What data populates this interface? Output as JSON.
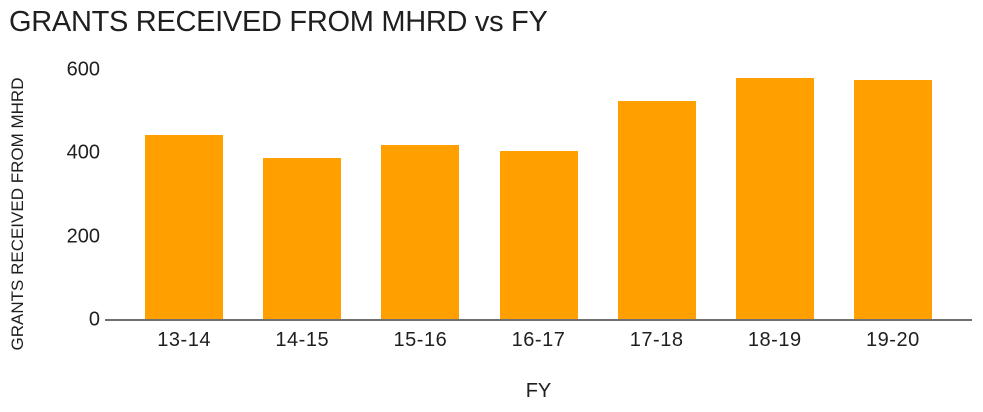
{
  "title": "GRANTS RECEIVED FROM MHRD vs FY",
  "y_axis": {
    "title": "GRANTS RECEIVED FROM MHRD",
    "tick_labels": [
      "600",
      "400",
      "200",
      "0"
    ]
  },
  "x_axis": {
    "title": "FY",
    "tick_labels": [
      "13-14",
      "14-15",
      "15-16",
      "16-17",
      "17-18",
      "18-19",
      "19-20"
    ]
  },
  "chart_data": {
    "type": "bar",
    "title": "GRANTS RECEIVED FROM MHRD vs FY",
    "categories": [
      "13-14",
      "14-15",
      "15-16",
      "16-17",
      "17-18",
      "18-19",
      "19-20"
    ],
    "values": [
      445,
      390,
      420,
      405,
      525,
      580,
      575
    ],
    "xlabel": "FY",
    "ylabel": "GRANTS RECEIVED FROM MHRD",
    "ylim": [
      0,
      600
    ],
    "yticks": [
      0,
      200,
      400,
      600
    ],
    "grid": false,
    "legend": false,
    "bar_color": "#FF9F00"
  },
  "colors": {
    "bar": "#FF9F00",
    "axis_line": "#707070",
    "text": "#1F1F1F"
  }
}
